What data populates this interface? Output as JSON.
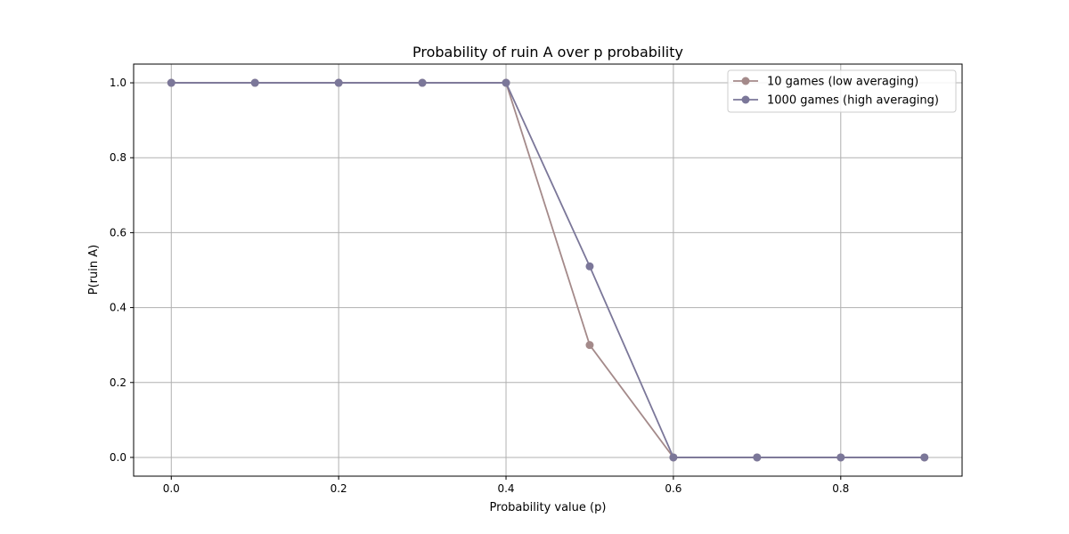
{
  "chart_data": {
    "type": "line",
    "title": "Probability of ruin A over p probability",
    "xlabel": "Probability value (p)",
    "ylabel": "P(ruin A)",
    "x": [
      0.0,
      0.1,
      0.2,
      0.3,
      0.4,
      0.5,
      0.6,
      0.7,
      0.8,
      0.9
    ],
    "xlim": [
      -0.045,
      0.945
    ],
    "ylim": [
      -0.05,
      1.05
    ],
    "xticks": [
      "0.0",
      "0.2",
      "0.4",
      "0.6",
      "0.8"
    ],
    "xtick_values": [
      0.0,
      0.2,
      0.4,
      0.6,
      0.8
    ],
    "yticks": [
      "0.0",
      "0.2",
      "0.4",
      "0.6",
      "0.8",
      "1.0"
    ],
    "ytick_values": [
      0.0,
      0.2,
      0.4,
      0.6,
      0.8,
      1.0
    ],
    "grid": true,
    "legend_position": "top-right",
    "series": [
      {
        "name": "10 games (low averaging)",
        "color": "#a48a8a",
        "values": [
          1.0,
          1.0,
          1.0,
          1.0,
          1.0,
          0.3,
          0.0,
          0.0,
          0.0,
          0.0
        ]
      },
      {
        "name": "1000 games (high averaging)",
        "color": "#7b7799",
        "values": [
          1.0,
          1.0,
          1.0,
          1.0,
          1.0,
          0.51,
          0.0,
          0.0,
          0.0,
          0.0
        ]
      }
    ]
  }
}
